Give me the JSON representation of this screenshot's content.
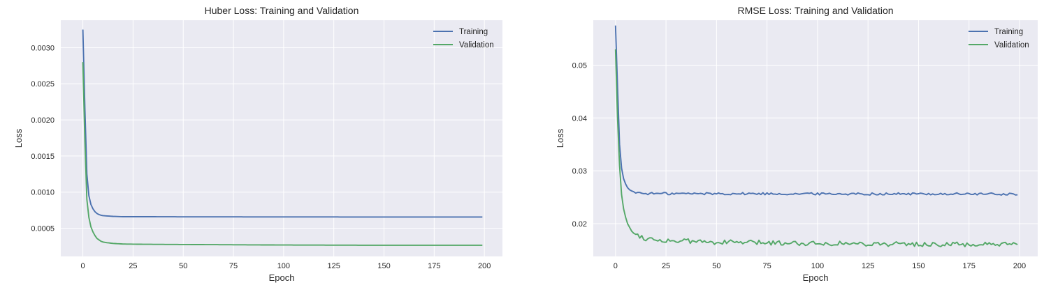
{
  "chart_data": [
    {
      "type": "line",
      "title": "Huber Loss: Training and Validation",
      "xlabel": "Epoch",
      "ylabel": "Loss",
      "xlim": [
        -11,
        209
      ],
      "ylim": [
        0.00011,
        0.00338
      ],
      "xticks": [
        0,
        25,
        50,
        75,
        100,
        125,
        150,
        175,
        200
      ],
      "yticks": [
        0.0005,
        0.001,
        0.0015,
        0.002,
        0.0025,
        0.003
      ],
      "ytick_labels": [
        "0.0005",
        "0.0010",
        "0.0015",
        "0.0020",
        "0.0025",
        "0.0030"
      ],
      "grid": true,
      "legend": "top-right",
      "series": [
        {
          "name": "Training",
          "color": "#4C72B0",
          "points": [
            [
              0,
              0.00325
            ],
            [
              1,
              0.00215
            ],
            [
              2,
              0.00125
            ],
            [
              3,
              0.00095
            ],
            [
              4,
              0.00083
            ],
            [
              5,
              0.00077
            ],
            [
              6,
              0.00073
            ],
            [
              7,
              0.000705
            ],
            [
              8,
              0.00069
            ],
            [
              9,
              0.00068
            ],
            [
              10,
              0.000675
            ],
            [
              12,
              0.00067
            ],
            [
              15,
              0.000665
            ],
            [
              20,
              0.00066
            ],
            [
              30,
              0.00066
            ],
            [
              50,
              0.000658
            ],
            [
              100,
              0.000657
            ],
            [
              150,
              0.000656
            ],
            [
              199,
              0.000656
            ]
          ]
        },
        {
          "name": "Validation",
          "color": "#55A868",
          "points": [
            [
              0,
              0.0028
            ],
            [
              1,
              0.0017
            ],
            [
              2,
              0.0009
            ],
            [
              3,
              0.00065
            ],
            [
              4,
              0.00052
            ],
            [
              5,
              0.00045
            ],
            [
              6,
              0.0004
            ],
            [
              7,
              0.00036
            ],
            [
              8,
              0.00034
            ],
            [
              9,
              0.00032
            ],
            [
              10,
              0.00031
            ],
            [
              12,
              0.0003
            ],
            [
              15,
              0.00029
            ],
            [
              20,
              0.000282
            ],
            [
              30,
              0.000278
            ],
            [
              50,
              0.000275
            ],
            [
              100,
              0.000268
            ],
            [
              150,
              0.000265
            ],
            [
              199,
              0.000265
            ]
          ]
        }
      ]
    },
    {
      "type": "line",
      "title": "RMSE Loss: Training and Validation",
      "xlabel": "Epoch",
      "ylabel": "Loss",
      "xlim": [
        -11,
        209
      ],
      "ylim": [
        0.0138,
        0.0585
      ],
      "xticks": [
        0,
        25,
        50,
        75,
        100,
        125,
        150,
        175,
        200
      ],
      "yticks": [
        0.02,
        0.03,
        0.04,
        0.05
      ],
      "ytick_labels": [
        "0.02",
        "0.03",
        "0.04",
        "0.05"
      ],
      "grid": true,
      "legend": "top-right",
      "series": [
        {
          "name": "Training",
          "color": "#4C72B0",
          "base": [
            [
              0,
              0.0575
            ],
            [
              1,
              0.046
            ],
            [
              2,
              0.035
            ],
            [
              3,
              0.0305
            ],
            [
              4,
              0.0285
            ],
            [
              5,
              0.0275
            ],
            [
              6,
              0.0268
            ],
            [
              7,
              0.0264
            ],
            [
              8,
              0.0262
            ],
            [
              10,
              0.0259
            ],
            [
              15,
              0.0257
            ],
            [
              199,
              0.0256
            ]
          ],
          "noise": 0.00022,
          "noise_from": 10
        },
        {
          "name": "Validation",
          "color": "#55A868",
          "base": [
            [
              0,
              0.053
            ],
            [
              1,
              0.04
            ],
            [
              2,
              0.031
            ],
            [
              3,
              0.0255
            ],
            [
              4,
              0.0228
            ],
            [
              5,
              0.0212
            ],
            [
              6,
              0.02
            ],
            [
              7,
              0.0193
            ],
            [
              8,
              0.0188
            ],
            [
              10,
              0.018
            ],
            [
              15,
              0.0172
            ],
            [
              25,
              0.0168
            ],
            [
              50,
              0.0165
            ],
            [
              100,
              0.0163
            ],
            [
              150,
              0.0161
            ],
            [
              199,
              0.016
            ]
          ],
          "noise": 0.00045,
          "noise_from": 8
        }
      ]
    }
  ]
}
